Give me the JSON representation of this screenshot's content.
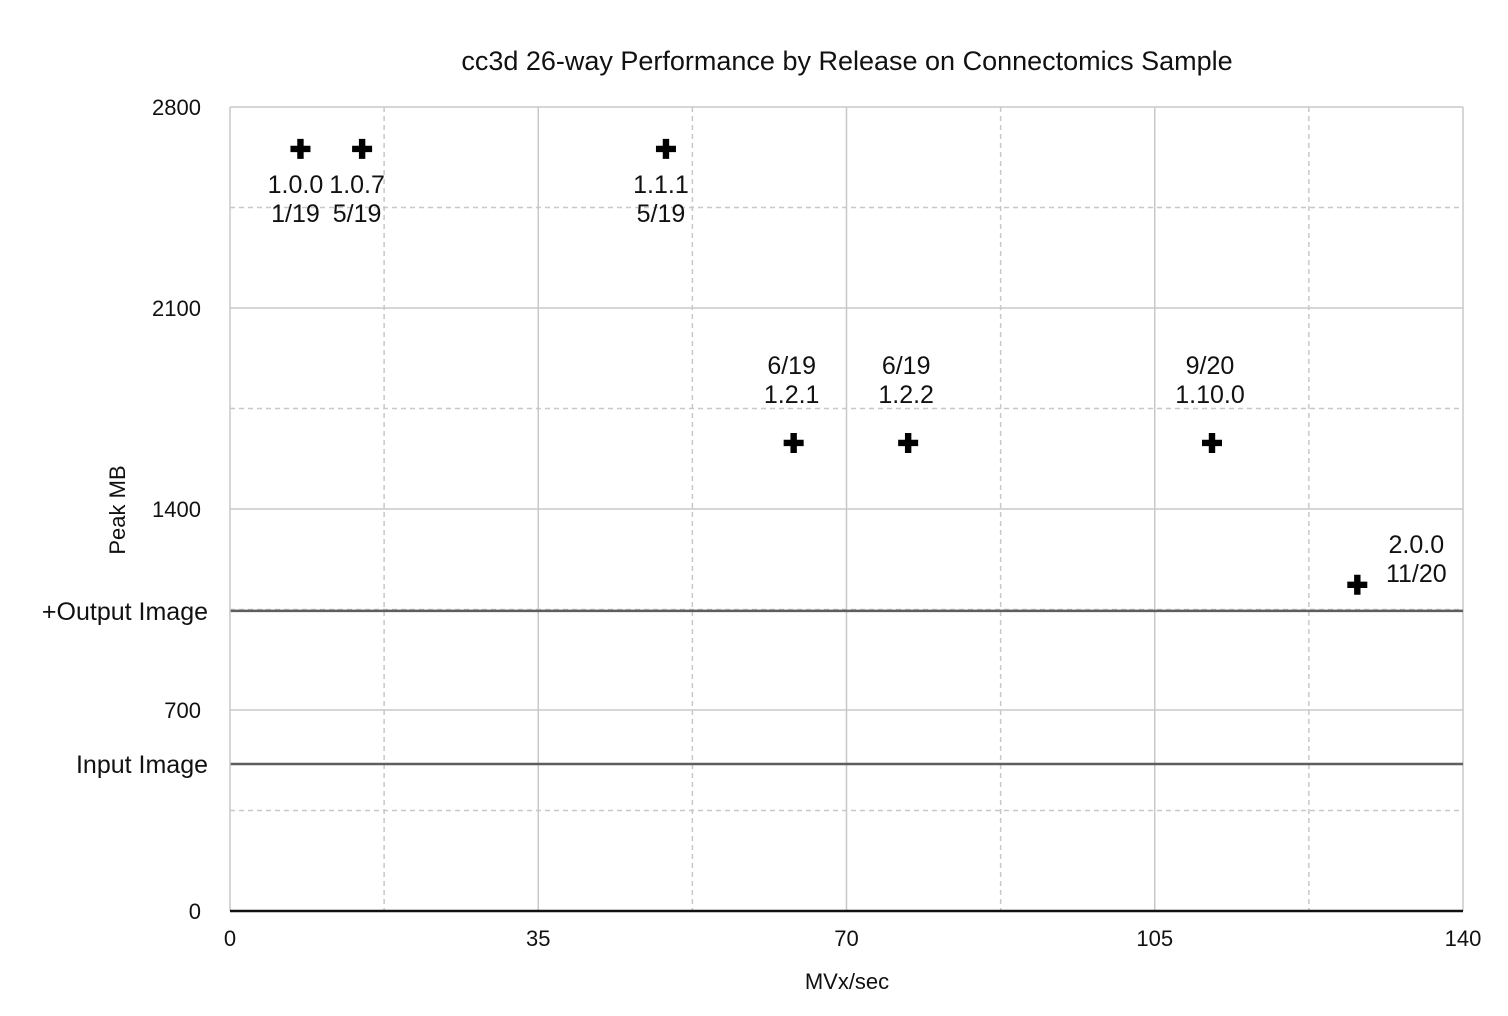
{
  "chart_data": {
    "type": "scatter",
    "title": "cc3d 26-way Performance by Release on Connectomics Sample",
    "xlabel": "MVx/sec",
    "ylabel": "Peak MB",
    "xlim": [
      0,
      140
    ],
    "ylim": [
      0,
      2800
    ],
    "x_ticks": [
      0,
      35,
      70,
      105,
      140
    ],
    "y_ticks": [
      0,
      700,
      1400,
      2100,
      2800
    ],
    "x_tick_labels": [
      "0",
      "35",
      "70",
      "105",
      "140"
    ],
    "y_tick_labels": [
      "0",
      "700",
      "1400",
      "2100",
      "2800"
    ],
    "grid": true,
    "marker": "plus",
    "marker_color": "#000000",
    "reference_lines": [
      {
        "label": "+Output Image",
        "y": 1045
      },
      {
        "label": "Input Image",
        "y": 512
      }
    ],
    "points": [
      {
        "x": 8,
        "y": 2654,
        "lines": [
          "1.0.0",
          "1/19"
        ]
      },
      {
        "x": 15,
        "y": 2654,
        "lines": [
          "1.0.7",
          "5/19"
        ]
      },
      {
        "x": 49.5,
        "y": 2654,
        "lines": [
          "1.1.1",
          "5/19"
        ]
      },
      {
        "x": 64,
        "y": 1630,
        "lines": [
          "6/19",
          "1.2.1"
        ]
      },
      {
        "x": 77,
        "y": 1630,
        "lines": [
          "6/19",
          "1.2.2"
        ]
      },
      {
        "x": 111.5,
        "y": 1630,
        "lines": [
          "9/20",
          "1.10.0"
        ]
      },
      {
        "x": 128,
        "y": 1136,
        "lines": [
          "2.0.0",
          "11/20"
        ]
      }
    ]
  }
}
